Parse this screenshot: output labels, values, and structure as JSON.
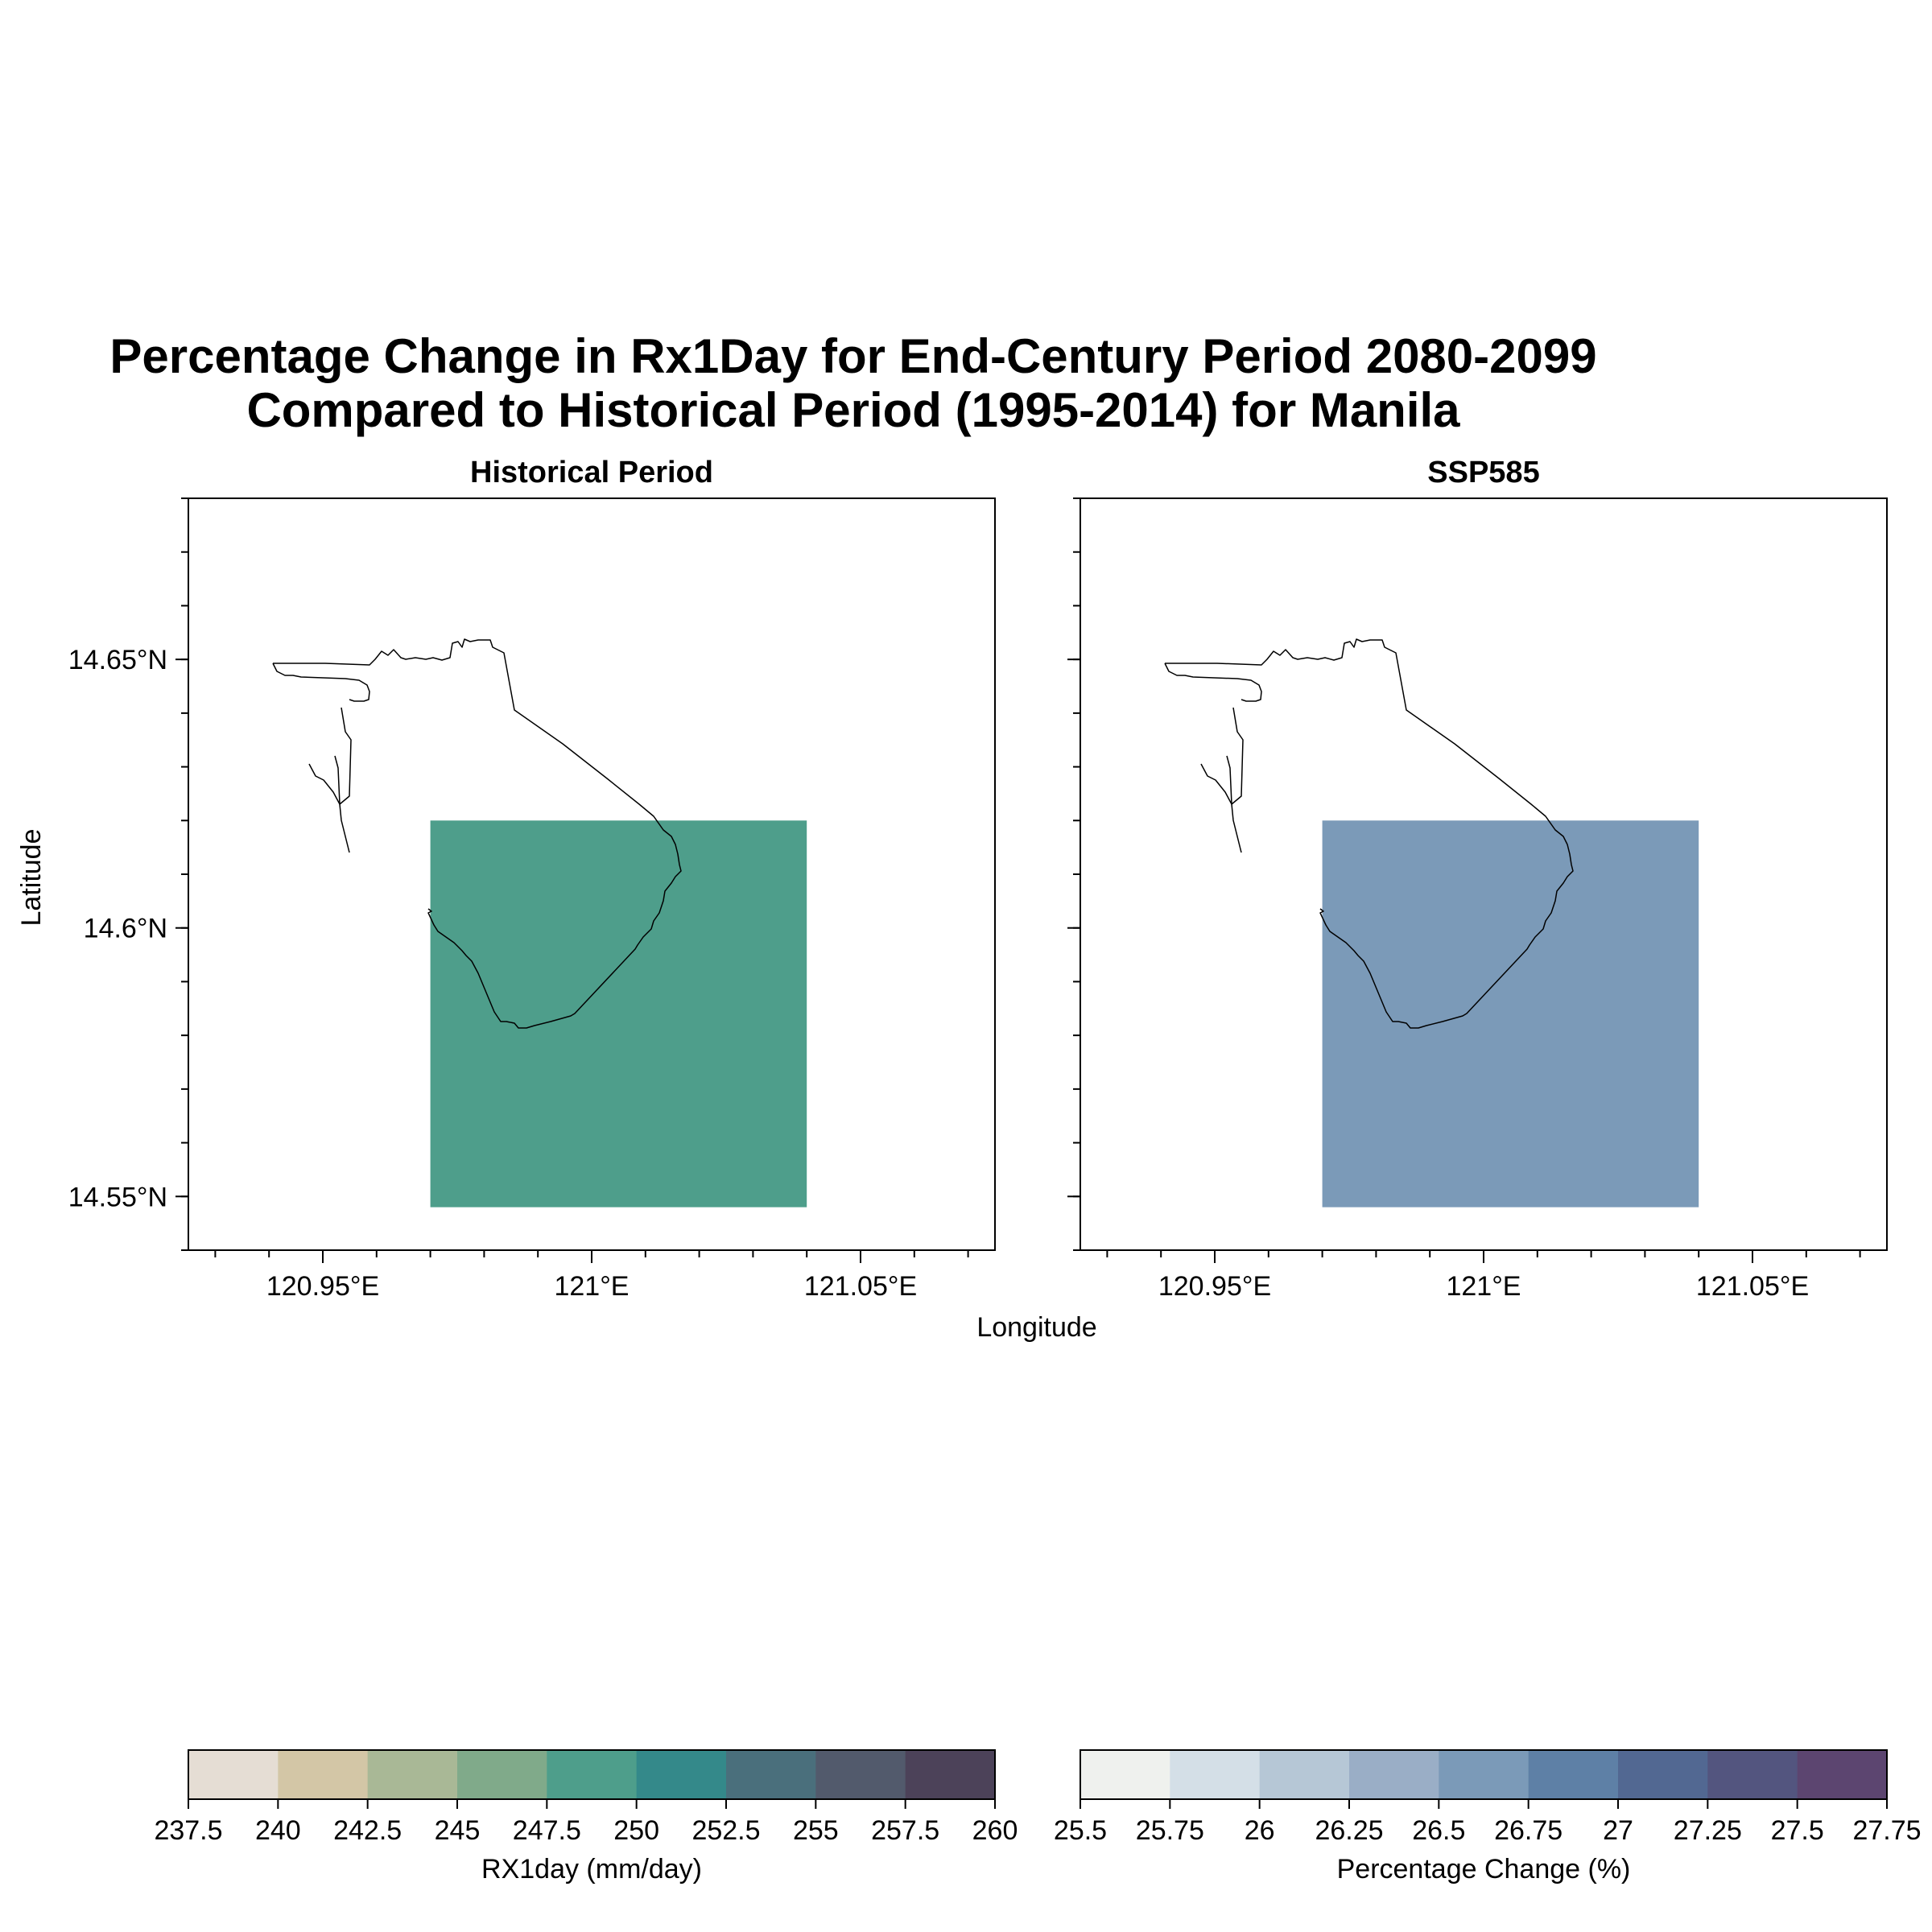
{
  "title_line1": "Percentage Change in Rx1Day for End-Century Period 2080-2099",
  "title_line2": "Compared to Historical Period (1995-2014) for Manila",
  "xlabel": "Longitude",
  "ylabel": "Latitude",
  "chart_data": [
    {
      "type": "heatmap",
      "title": "Historical Period",
      "extent": {
        "lon": [
          120.925,
          121.075
        ],
        "lat": [
          14.54,
          14.68
        ]
      },
      "xticks": [
        {
          "value": 120.95,
          "label": "120.95°E"
        },
        {
          "value": 121.0,
          "label": "121°E"
        },
        {
          "value": 121.05,
          "label": "121.05°E"
        }
      ],
      "yticks": [
        {
          "value": 14.55,
          "label": "14.55°N"
        },
        {
          "value": 14.6,
          "label": "14.6°N"
        },
        {
          "value": 14.65,
          "label": "14.65°N"
        }
      ],
      "cells": [
        {
          "lon": [
            120.97,
            121.04
          ],
          "lat": [
            14.548,
            14.62
          ],
          "value": 248.5,
          "color": "#4e9e8b"
        }
      ],
      "colorbar": {
        "label": "RX1day (mm/day)",
        "levels": [
          "237.5",
          "240",
          "242.5",
          "245",
          "247.5",
          "250",
          "252.5",
          "255",
          "257.5",
          "260"
        ],
        "colors": [
          "#e5ddd4",
          "#d3c6a6",
          "#a9b896",
          "#80aa8a",
          "#4e9e8b",
          "#34898a",
          "#4a6f7c",
          "#525a6c",
          "#4c4259"
        ]
      }
    },
    {
      "type": "heatmap",
      "title": "SSP585",
      "extent": {
        "lon": [
          120.925,
          121.075
        ],
        "lat": [
          14.54,
          14.68
        ]
      },
      "xticks": [
        {
          "value": 120.95,
          "label": "120.95°E"
        },
        {
          "value": 121.0,
          "label": "121°E"
        },
        {
          "value": 121.05,
          "label": "121.05°E"
        }
      ],
      "yticks": [
        {
          "value": 14.55,
          "label": ""
        },
        {
          "value": 14.6,
          "label": ""
        },
        {
          "value": 14.65,
          "label": ""
        }
      ],
      "cells": [
        {
          "lon": [
            120.97,
            121.04
          ],
          "lat": [
            14.548,
            14.62
          ],
          "value": 26.6,
          "color": "#7b9ab8"
        }
      ],
      "colorbar": {
        "label": "Percentage Change (%)",
        "levels": [
          "25.5",
          "25.75",
          "26",
          "26.25",
          "26.5",
          "26.75",
          "27",
          "27.25",
          "27.5",
          "27.75"
        ],
        "colors": [
          "#eff1ee",
          "#d4dfe7",
          "#b6c7d6",
          "#9aaec6",
          "#7b9ab8",
          "#5e80a6",
          "#526892",
          "#53557f",
          "#5c4570"
        ]
      }
    }
  ]
}
